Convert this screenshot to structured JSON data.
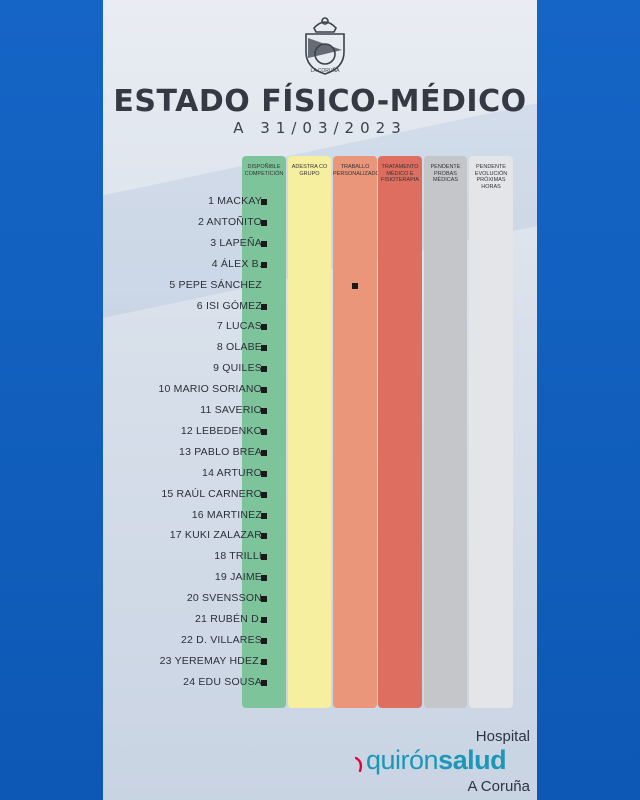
{
  "header": {
    "title": "ESTADO FÍSICO-MÉDICO",
    "subtitle": "A 31/03/2023",
    "crest_icon": "club-crest",
    "crest_text": "REAL CLUB DEPORTIVO LA CORUÑA"
  },
  "columns": [
    {
      "label": "DISPOÑIBLE COMPETICIÓN",
      "color": "#7ec49b"
    },
    {
      "label": "ADESTRA CO GRUPO",
      "color": "#f5ef9f"
    },
    {
      "label": "TRABALLO PERSONALIZADO",
      "color": "#e9967b"
    },
    {
      "label": "TRATAMENTO MÉDICO E FISIOTERAPIA",
      "color": "#de6e5f"
    },
    {
      "label": "PENDENTE PROBAS MÉDICAS",
      "color": "#c4c6ca"
    },
    {
      "label": "PENDENTE EVOLUCIÓN PRÓXIMAS HORAS",
      "color": "#e4e5e8"
    }
  ],
  "players": [
    {
      "name": "1 MACKAY",
      "status": 0
    },
    {
      "name": "2 ANTOÑITO",
      "status": 0
    },
    {
      "name": "3 LAPEÑA",
      "status": 0
    },
    {
      "name": "4 ÁLEX B.",
      "status": 0
    },
    {
      "name": "5 PEPE SÁNCHEZ",
      "status": 2
    },
    {
      "name": "6 ISI GÓMEZ",
      "status": 0
    },
    {
      "name": "7 LUCAS",
      "status": 0
    },
    {
      "name": "8 OLABE",
      "status": 0
    },
    {
      "name": "9 QUILES",
      "status": 0
    },
    {
      "name": "10 MARIO SORIANO",
      "status": 0
    },
    {
      "name": "11 SAVERIO",
      "status": 0
    },
    {
      "name": "12 LEBEDENKO",
      "status": 0
    },
    {
      "name": "13 PABLO BREA",
      "status": 0
    },
    {
      "name": "14 ARTURO",
      "status": 0
    },
    {
      "name": "15 RAÚL CARNERO",
      "status": 0
    },
    {
      "name": "16 MARTINEZ",
      "status": 0
    },
    {
      "name": "17 KUKI ZALAZAR",
      "status": 0
    },
    {
      "name": "18 TRILLI",
      "status": 0
    },
    {
      "name": "19 JAIME",
      "status": 0
    },
    {
      "name": "20 SVENSSON",
      "status": 0
    },
    {
      "name": "21 RUBÉN D.",
      "status": 0
    },
    {
      "name": "22 D. VILLARES",
      "status": 0
    },
    {
      "name": "23 YEREMAY HDEZ.",
      "status": 0
    },
    {
      "name": "24 EDU SOUSA",
      "status": 0
    }
  ],
  "footer": {
    "hospital": "Hospital",
    "brand_part1": "quirón",
    "brand_part2": "salud",
    "city": "A Coruña",
    "brand_color": "#1c97b8",
    "swoosh_color": "#e4003a"
  }
}
